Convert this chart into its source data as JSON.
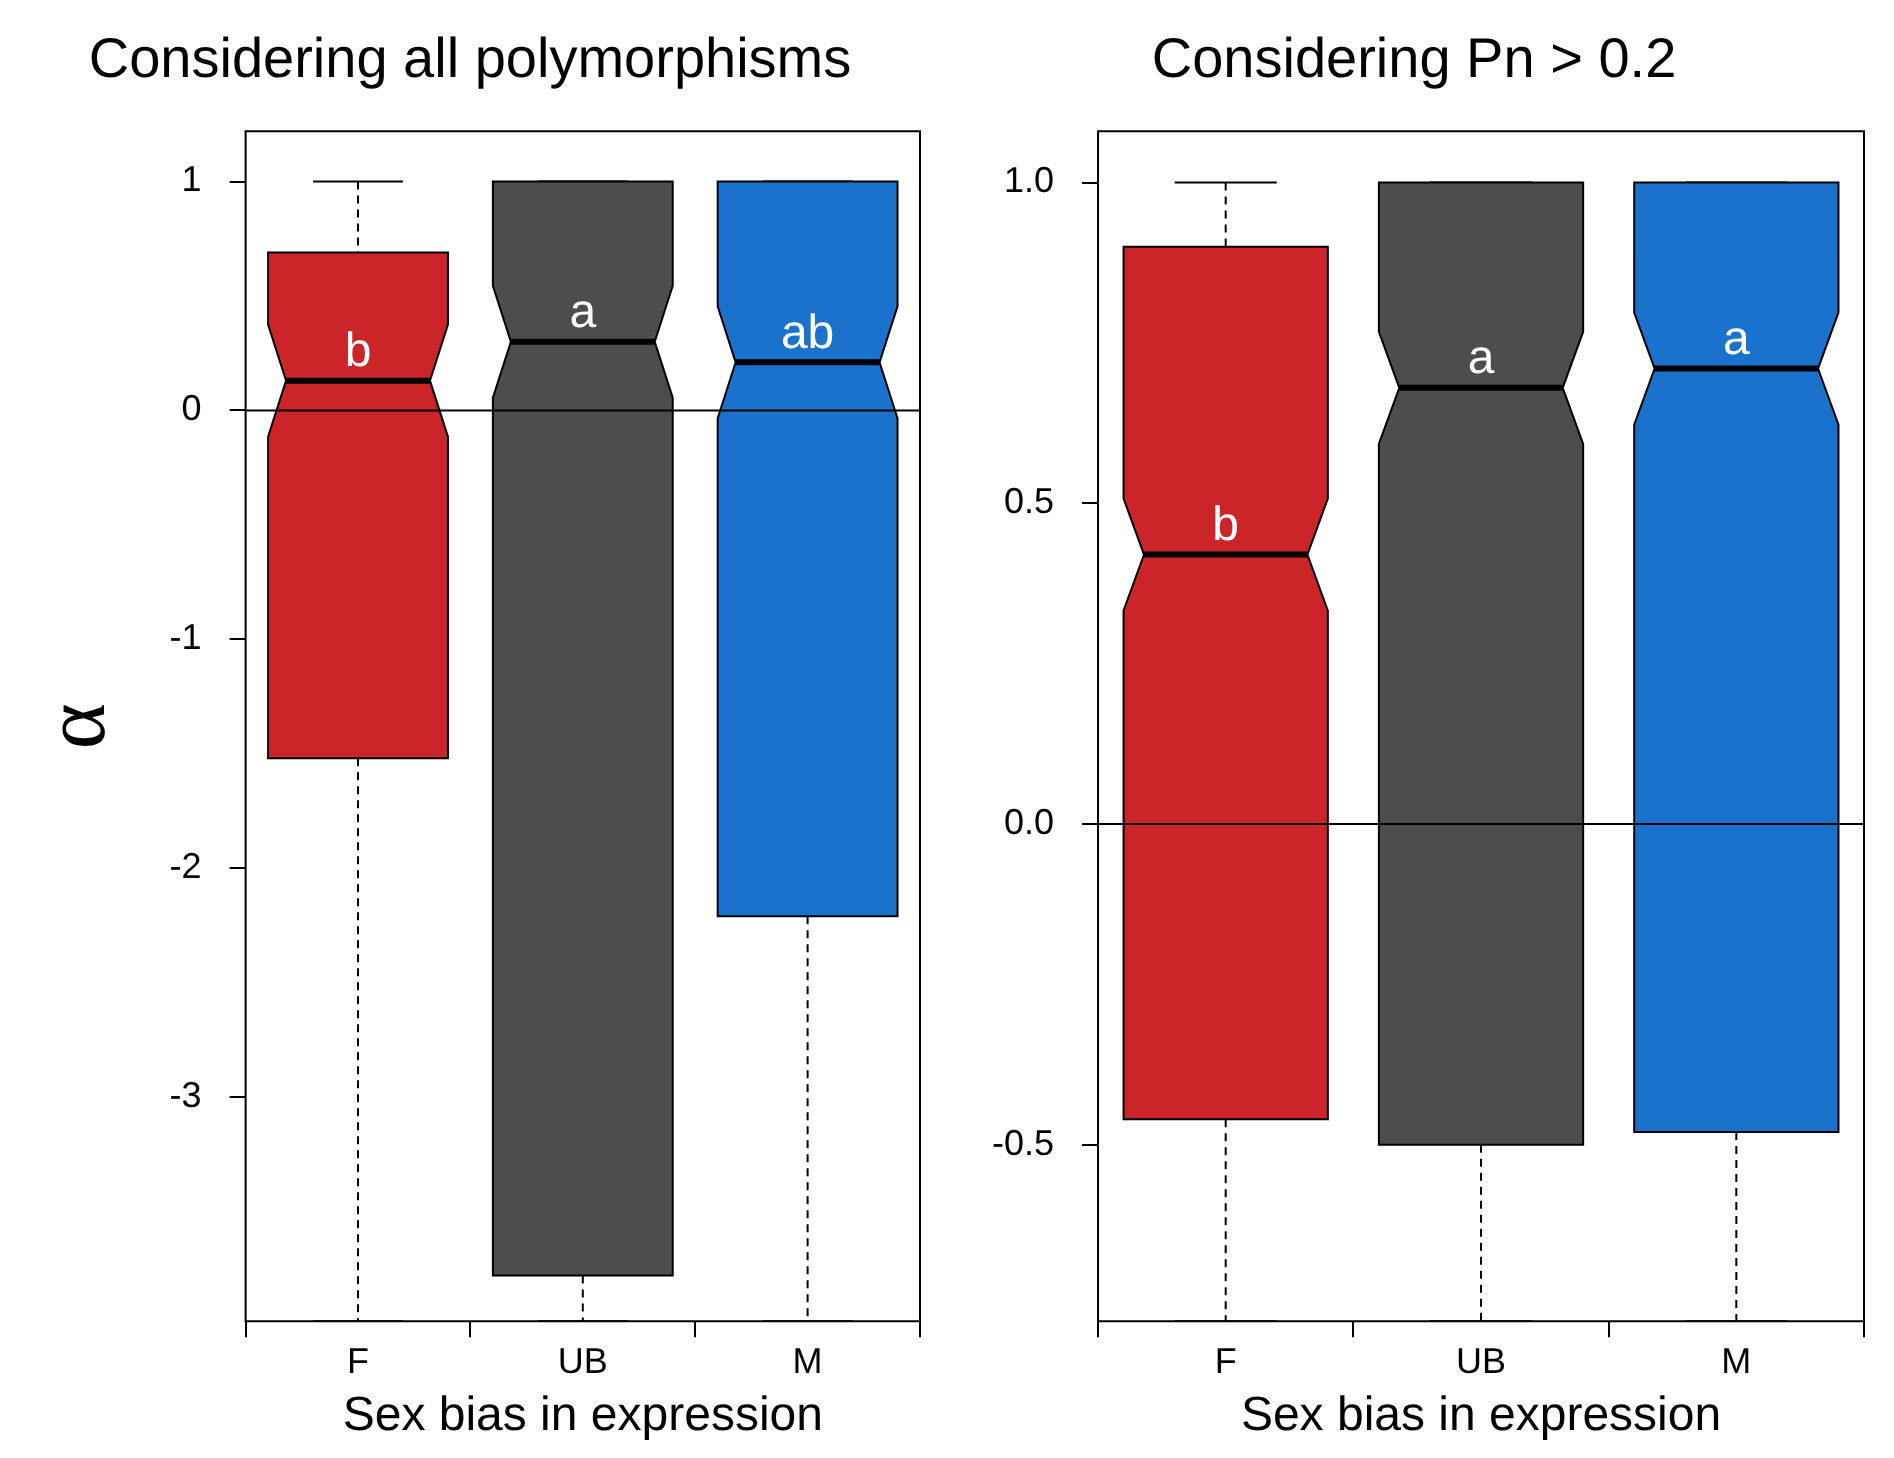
{
  "chart_data": [
    {
      "type": "box",
      "title": "Considering all polymorphisms",
      "xlabel": "Sex bias in expression",
      "ylabel": "α",
      "categories": [
        "F",
        "UB",
        "M"
      ],
      "colors": [
        "#cc2529",
        "#4d4d4d",
        "#1a72cc"
      ],
      "boxes": [
        {
          "low": -3.98,
          "q1": -1.52,
          "median": 0.13,
          "q3": 0.69,
          "high": 1
        },
        {
          "low": -3.98,
          "q1": -3.78,
          "median": 0.3,
          "q3": 1,
          "high": 1
        },
        {
          "low": -3.98,
          "q1": -2.21,
          "median": 0.21,
          "q3": 1,
          "high": 1
        }
      ],
      "ylim": [
        -3.98,
        1.22
      ],
      "yticks": [
        -3,
        -2,
        -1,
        0,
        1
      ],
      "ref_lines": [
        {
          "axis": "y",
          "value": 0,
          "color": "#000000"
        }
      ],
      "annotations": [
        {
          "text": "b",
          "x": "F",
          "y": 0.13
        },
        {
          "text": "a",
          "x": "UB",
          "y": 0.3
        },
        {
          "text": "ab",
          "x": "M",
          "y": 0.21
        }
      ],
      "grid": false,
      "legend": false
    },
    {
      "type": "box",
      "title": "Considering Pn > 0.2",
      "xlabel": "Sex bias in expression",
      "categories": [
        "F",
        "UB",
        "M"
      ],
      "colors": [
        "#cc2529",
        "#4d4d4d",
        "#1a72cc"
      ],
      "boxes": [
        {
          "low": -0.775,
          "q1": -0.46,
          "median": 0.42,
          "q3": 0.9,
          "high": 1
        },
        {
          "low": -0.775,
          "q1": -0.5,
          "median": 0.68,
          "q3": 1,
          "high": 1
        },
        {
          "low": -0.775,
          "q1": -0.48,
          "median": 0.71,
          "q3": 1,
          "high": 1
        }
      ],
      "ylim": [
        -0.775,
        1.08
      ],
      "yticks": [
        {
          "value": -0.5,
          "label": "-0.5"
        },
        {
          "value": 0,
          "label": "0.0"
        },
        {
          "value": 0.5,
          "label": "0.5"
        },
        {
          "value": 1,
          "label": "1.0"
        }
      ],
      "ref_lines": [
        {
          "axis": "y",
          "value": 0,
          "color": "#000000"
        }
      ],
      "annotations": [
        {
          "text": "b",
          "x": "F",
          "y": 0.42
        },
        {
          "text": "a",
          "x": "UB",
          "y": 0.68
        },
        {
          "text": "a",
          "x": "M",
          "y": 0.71
        }
      ],
      "grid": false,
      "legend": false
    }
  ]
}
